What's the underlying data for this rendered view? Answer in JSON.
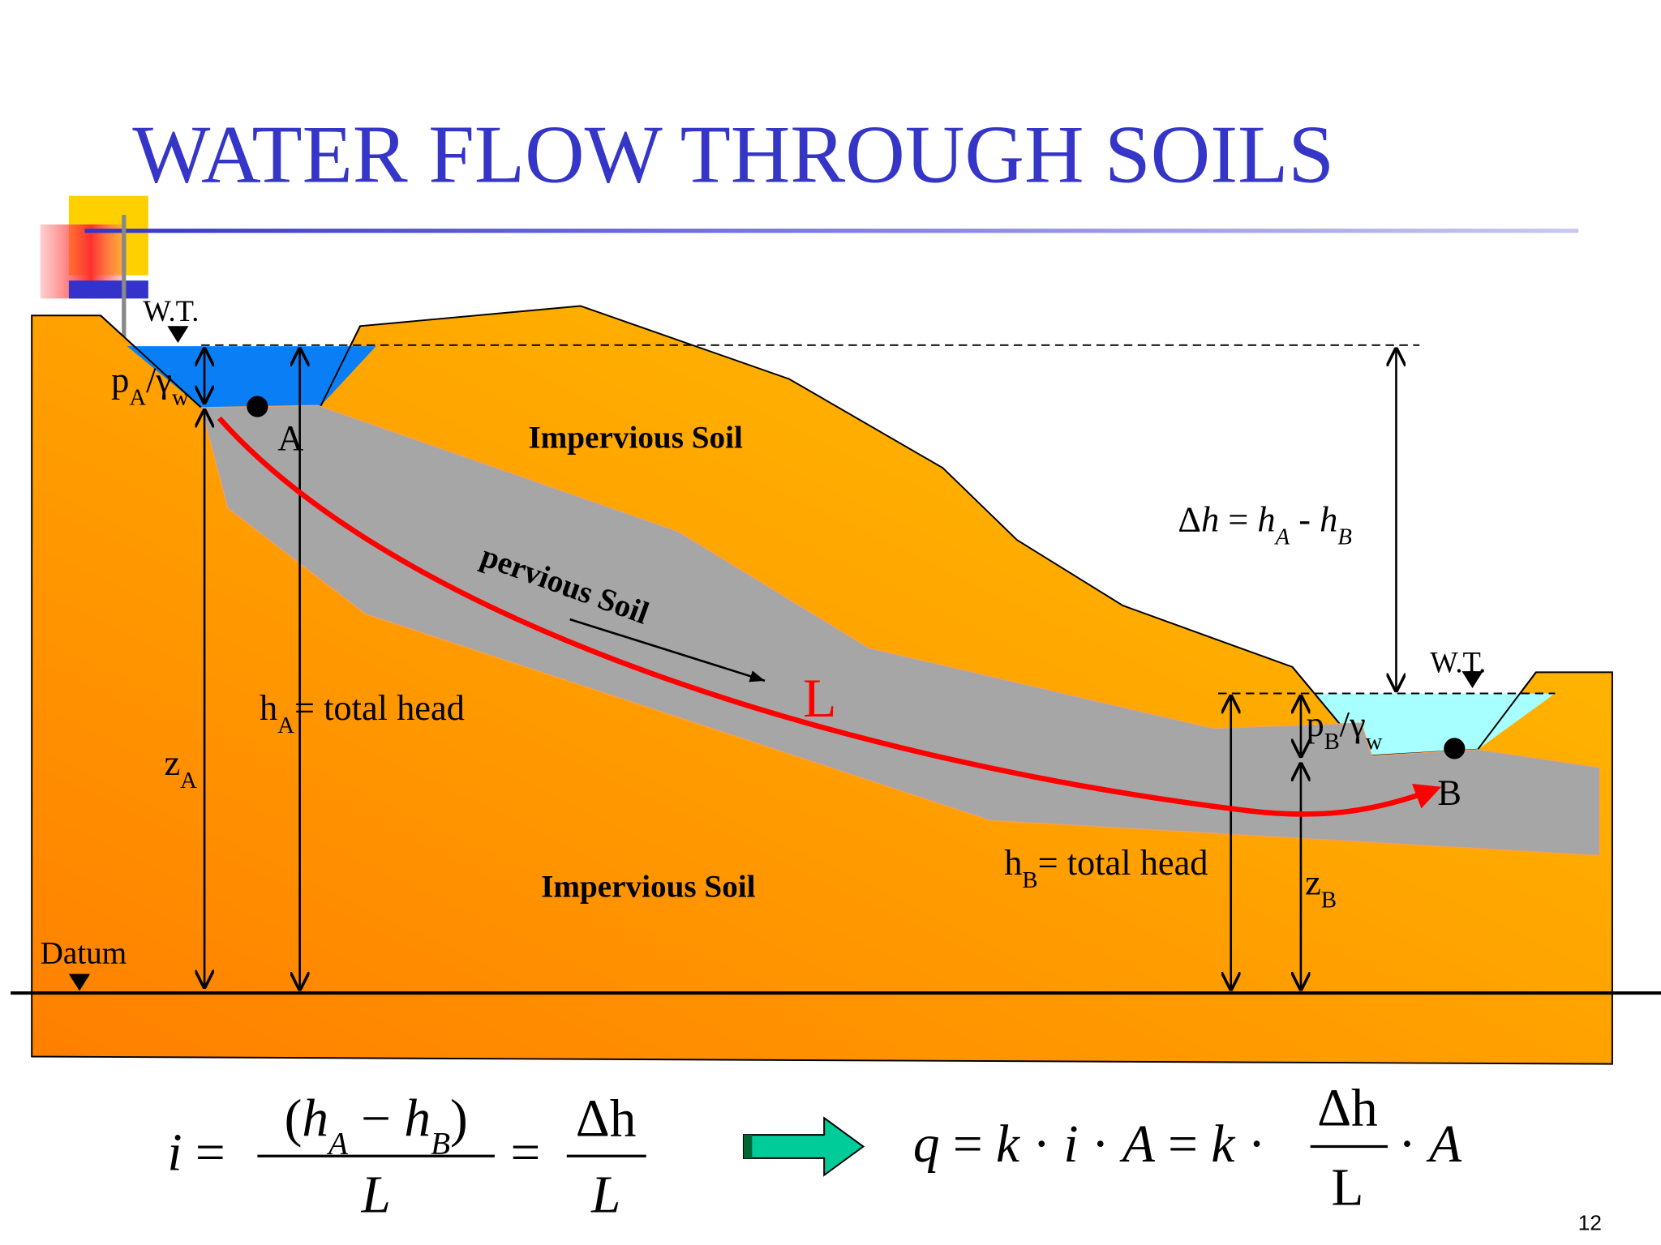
{
  "title": "WATER FLOW THROUGH SOILS",
  "diagram": {
    "soil_top": "Impervious Soil",
    "pervious": "pervious Soil",
    "soil_bottom": "Impervious Soil",
    "water_table_a": "W.T.",
    "water_table_b": "W.T.",
    "point_a": "A",
    "point_b": "B",
    "flow_length": "L",
    "datum": "Datum",
    "pressure_head_a": [
      "p",
      "A",
      "/γ",
      "w"
    ],
    "pressure_head_b": [
      "p",
      "B",
      "/γ",
      "w"
    ],
    "elevation_a": [
      "z",
      "A"
    ],
    "elevation_b": [
      "z",
      "B"
    ],
    "total_head_a": [
      "h",
      "A",
      "= total head"
    ],
    "total_head_b": [
      "h",
      "B",
      "= total head"
    ],
    "head_loss": [
      "Δ",
      "h",
      " = ",
      "h",
      "A",
      " - ",
      "h",
      "B"
    ]
  },
  "formulas": {
    "gradient": {
      "lhs": [
        "i",
        " ="
      ],
      "numerator": [
        "(",
        "h",
        "A",
        " − ",
        "h",
        "B",
        ")"
      ],
      "denominator": "L",
      "equals": "=",
      "numerator2": "Δh",
      "denominator2": "L"
    },
    "discharge": {
      "lhs": [
        "q",
        " = ",
        "k",
        " · ",
        "i",
        " · ",
        "A",
        " = ",
        "k",
        " ·"
      ],
      "numerator": "Δh",
      "denominator": "L",
      "rhs": [
        "· ",
        "A"
      ]
    }
  },
  "page_number": "12"
}
